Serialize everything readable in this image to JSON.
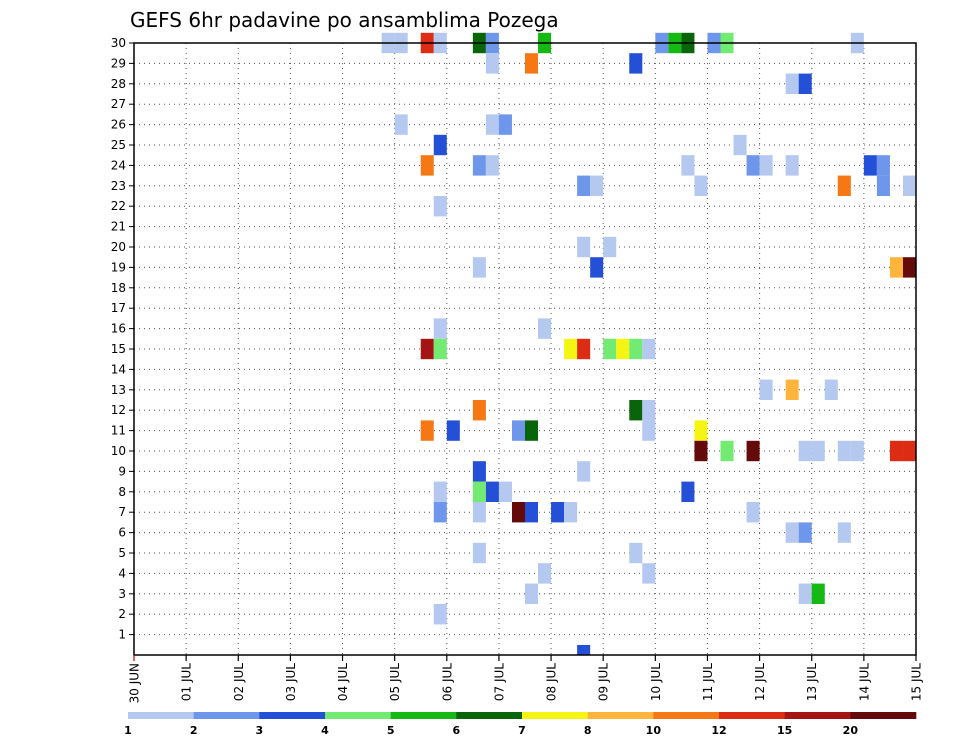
{
  "chart_data": {
    "type": "heatmap",
    "title": "GEFS 6hr padavine po ansamblima Pozega",
    "xlabel": "",
    "ylabel": "",
    "x_tick_labels": [
      "30 JUN",
      "01 JUL",
      "02 JUL",
      "03 JUL",
      "04 JUL",
      "05 JUL",
      "06 JUL",
      "07 JUL",
      "08 JUL",
      "09 JUL",
      "10 JUL",
      "11 JUL",
      "12 JUL",
      "13 JUL",
      "14 JUL",
      "15 JUL"
    ],
    "y_tick_labels": [
      "1",
      "2",
      "3",
      "4",
      "5",
      "6",
      "7",
      "8",
      "9",
      "10",
      "11",
      "12",
      "13",
      "14",
      "15",
      "16",
      "17",
      "18",
      "19",
      "20",
      "21",
      "22",
      "23",
      "24",
      "25",
      "26",
      "27",
      "28",
      "29",
      "30"
    ],
    "xlim_days": [
      0,
      15
    ],
    "ylim_members": [
      0,
      30
    ],
    "time_step_hours": 6,
    "grid": true,
    "legend": {
      "placement": "bottom",
      "labels": [
        "1",
        "2",
        "3",
        "4",
        "5",
        "6",
        "7",
        "8",
        "10",
        "12",
        "15",
        "20"
      ],
      "colors": [
        "#b4c8f0",
        "#6e96eb",
        "#2350d7",
        "#73eb73",
        "#14b914",
        "#0a640a",
        "#f5f514",
        "#ffb43c",
        "#f57814",
        "#dc2d14",
        "#a51414",
        "#640a0a"
      ]
    },
    "cells": [
      {
        "day": 4.75,
        "member": 30,
        "color": "#b4c8f0"
      },
      {
        "day": 5.0,
        "member": 30,
        "color": "#b4c8f0"
      },
      {
        "day": 5.5,
        "member": 30,
        "color": "#dc2d14"
      },
      {
        "day": 5.75,
        "member": 30,
        "color": "#b4c8f0"
      },
      {
        "day": 6.5,
        "member": 30,
        "color": "#0a640a"
      },
      {
        "day": 6.75,
        "member": 30,
        "color": "#6e96eb"
      },
      {
        "day": 7.75,
        "member": 30,
        "color": "#14b914"
      },
      {
        "day": 10.0,
        "member": 30,
        "color": "#6e96eb"
      },
      {
        "day": 10.25,
        "member": 30,
        "color": "#14b914"
      },
      {
        "day": 10.5,
        "member": 30,
        "color": "#0a640a"
      },
      {
        "day": 11.0,
        "member": 30,
        "color": "#6e96eb"
      },
      {
        "day": 11.25,
        "member": 30,
        "color": "#73eb73"
      },
      {
        "day": 13.75,
        "member": 30,
        "color": "#b4c8f0"
      },
      {
        "day": 6.75,
        "member": 29,
        "color": "#b4c8f0"
      },
      {
        "day": 7.5,
        "member": 29,
        "color": "#f57814"
      },
      {
        "day": 9.5,
        "member": 29,
        "color": "#2350d7"
      },
      {
        "day": 12.5,
        "member": 28,
        "color": "#b4c8f0"
      },
      {
        "day": 12.75,
        "member": 28,
        "color": "#2350d7"
      },
      {
        "day": 5.0,
        "member": 26,
        "color": "#b4c8f0"
      },
      {
        "day": 6.75,
        "member": 26,
        "color": "#b4c8f0"
      },
      {
        "day": 7.0,
        "member": 26,
        "color": "#6e96eb"
      },
      {
        "day": 5.75,
        "member": 25,
        "color": "#2350d7"
      },
      {
        "day": 11.5,
        "member": 25,
        "color": "#b4c8f0"
      },
      {
        "day": 5.5,
        "member": 24,
        "color": "#f57814"
      },
      {
        "day": 6.5,
        "member": 24,
        "color": "#6e96eb"
      },
      {
        "day": 6.75,
        "member": 24,
        "color": "#b4c8f0"
      },
      {
        "day": 10.5,
        "member": 24,
        "color": "#b4c8f0"
      },
      {
        "day": 11.75,
        "member": 24,
        "color": "#6e96eb"
      },
      {
        "day": 12.0,
        "member": 24,
        "color": "#b4c8f0"
      },
      {
        "day": 12.5,
        "member": 24,
        "color": "#b4c8f0"
      },
      {
        "day": 14.0,
        "member": 24,
        "color": "#2350d7"
      },
      {
        "day": 14.25,
        "member": 24,
        "color": "#6e96eb"
      },
      {
        "day": 8.5,
        "member": 23,
        "color": "#6e96eb"
      },
      {
        "day": 8.75,
        "member": 23,
        "color": "#b4c8f0"
      },
      {
        "day": 10.75,
        "member": 23,
        "color": "#b4c8f0"
      },
      {
        "day": 13.5,
        "member": 23,
        "color": "#f57814"
      },
      {
        "day": 14.25,
        "member": 23,
        "color": "#6e96eb"
      },
      {
        "day": 14.75,
        "member": 23,
        "color": "#b4c8f0"
      },
      {
        "day": 5.75,
        "member": 22,
        "color": "#b4c8f0"
      },
      {
        "day": 8.5,
        "member": 20,
        "color": "#b4c8f0"
      },
      {
        "day": 9.0,
        "member": 20,
        "color": "#b4c8f0"
      },
      {
        "day": 6.5,
        "member": 19,
        "color": "#b4c8f0"
      },
      {
        "day": 8.75,
        "member": 19,
        "color": "#2350d7"
      },
      {
        "day": 14.5,
        "member": 19,
        "color": "#ffb43c"
      },
      {
        "day": 14.75,
        "member": 19,
        "color": "#640a0a"
      },
      {
        "day": 5.75,
        "member": 16,
        "color": "#b4c8f0"
      },
      {
        "day": 7.75,
        "member": 16,
        "color": "#b4c8f0"
      },
      {
        "day": 5.5,
        "member": 15,
        "color": "#a51414"
      },
      {
        "day": 5.75,
        "member": 15,
        "color": "#73eb73"
      },
      {
        "day": 8.25,
        "member": 15,
        "color": "#f5f514"
      },
      {
        "day": 8.5,
        "member": 15,
        "color": "#dc2d14"
      },
      {
        "day": 9.0,
        "member": 15,
        "color": "#73eb73"
      },
      {
        "day": 9.25,
        "member": 15,
        "color": "#f5f514"
      },
      {
        "day": 9.5,
        "member": 15,
        "color": "#73eb73"
      },
      {
        "day": 9.75,
        "member": 15,
        "color": "#b4c8f0"
      },
      {
        "day": 12.0,
        "member": 13,
        "color": "#b4c8f0"
      },
      {
        "day": 12.5,
        "member": 13,
        "color": "#ffb43c"
      },
      {
        "day": 13.25,
        "member": 13,
        "color": "#b4c8f0"
      },
      {
        "day": 6.5,
        "member": 12,
        "color": "#f57814"
      },
      {
        "day": 9.5,
        "member": 12,
        "color": "#0a640a"
      },
      {
        "day": 9.75,
        "member": 12,
        "color": "#b4c8f0"
      },
      {
        "day": 5.5,
        "member": 11,
        "color": "#f57814"
      },
      {
        "day": 6.0,
        "member": 11,
        "color": "#2350d7"
      },
      {
        "day": 7.25,
        "member": 11,
        "color": "#6e96eb"
      },
      {
        "day": 7.5,
        "member": 11,
        "color": "#0a640a"
      },
      {
        "day": 9.75,
        "member": 11,
        "color": "#b4c8f0"
      },
      {
        "day": 10.75,
        "member": 11,
        "color": "#f5f514"
      },
      {
        "day": 10.75,
        "member": 10,
        "color": "#640a0a"
      },
      {
        "day": 11.25,
        "member": 10,
        "color": "#73eb73"
      },
      {
        "day": 11.75,
        "member": 10,
        "color": "#640a0a"
      },
      {
        "day": 12.75,
        "member": 10,
        "color": "#b4c8f0"
      },
      {
        "day": 13.0,
        "member": 10,
        "color": "#b4c8f0"
      },
      {
        "day": 13.5,
        "member": 10,
        "color": "#b4c8f0"
      },
      {
        "day": 13.75,
        "member": 10,
        "color": "#b4c8f0"
      },
      {
        "day": 14.5,
        "member": 10,
        "color": "#dc2d14"
      },
      {
        "day": 14.75,
        "member": 10,
        "color": "#dc2d14"
      },
      {
        "day": 6.5,
        "member": 9,
        "color": "#2350d7"
      },
      {
        "day": 8.5,
        "member": 9,
        "color": "#b4c8f0"
      },
      {
        "day": 5.75,
        "member": 8,
        "color": "#b4c8f0"
      },
      {
        "day": 6.5,
        "member": 8,
        "color": "#73eb73"
      },
      {
        "day": 6.75,
        "member": 8,
        "color": "#2350d7"
      },
      {
        "day": 7.0,
        "member": 8,
        "color": "#b4c8f0"
      },
      {
        "day": 10.5,
        "member": 8,
        "color": "#2350d7"
      },
      {
        "day": 5.75,
        "member": 7,
        "color": "#6e96eb"
      },
      {
        "day": 6.5,
        "member": 7,
        "color": "#b4c8f0"
      },
      {
        "day": 7.25,
        "member": 7,
        "color": "#640a0a"
      },
      {
        "day": 7.5,
        "member": 7,
        "color": "#2350d7"
      },
      {
        "day": 8.0,
        "member": 7,
        "color": "#2350d7"
      },
      {
        "day": 8.25,
        "member": 7,
        "color": "#b4c8f0"
      },
      {
        "day": 11.75,
        "member": 7,
        "color": "#b4c8f0"
      },
      {
        "day": 12.5,
        "member": 6,
        "color": "#b4c8f0"
      },
      {
        "day": 12.75,
        "member": 6,
        "color": "#6e96eb"
      },
      {
        "day": 13.5,
        "member": 6,
        "color": "#b4c8f0"
      },
      {
        "day": 6.5,
        "member": 5,
        "color": "#b4c8f0"
      },
      {
        "day": 9.5,
        "member": 5,
        "color": "#b4c8f0"
      },
      {
        "day": 7.75,
        "member": 4,
        "color": "#b4c8f0"
      },
      {
        "day": 9.75,
        "member": 4,
        "color": "#b4c8f0"
      },
      {
        "day": 7.5,
        "member": 3,
        "color": "#b4c8f0"
      },
      {
        "day": 12.75,
        "member": 3,
        "color": "#b4c8f0"
      },
      {
        "day": 13.0,
        "member": 3,
        "color": "#14b914"
      },
      {
        "day": 5.75,
        "member": 2,
        "color": "#b4c8f0"
      },
      {
        "day": 8.5,
        "member": 0,
        "color": "#2350d7"
      }
    ]
  }
}
